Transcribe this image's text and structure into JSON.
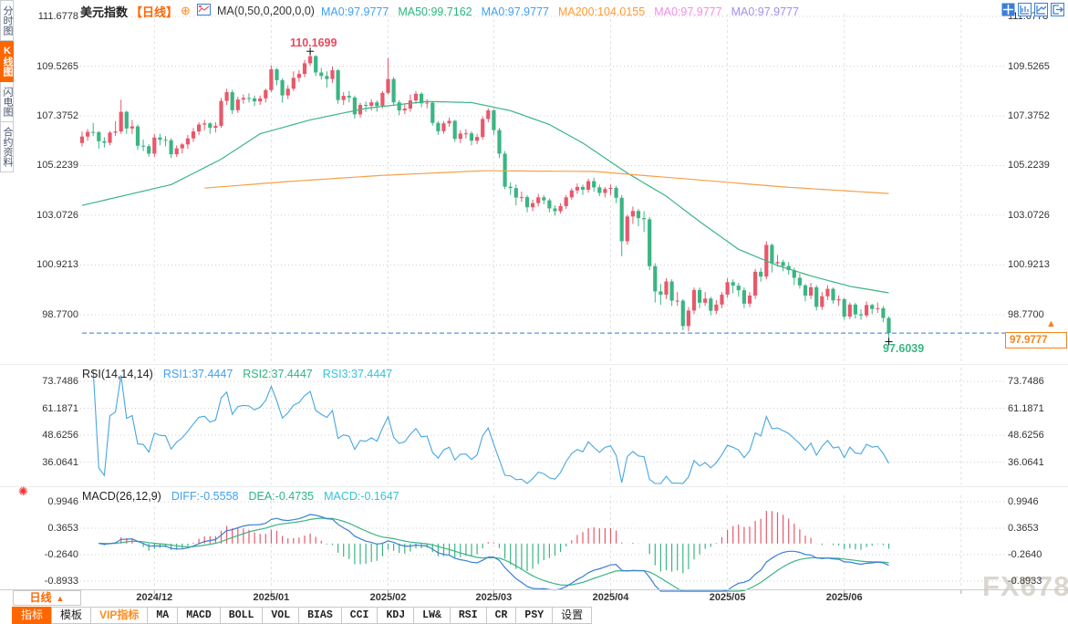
{
  "header": {
    "title": "美元指数",
    "period_tag": "【日线】",
    "plus_icon": "⊕",
    "ma_settings": "MA(0,50,0,200,0,0)",
    "ma_values": [
      {
        "label": "MA0:97.9777",
        "color": "#42a0f0"
      },
      {
        "label": "MA50:99.7162",
        "color": "#2cb580"
      },
      {
        "label": "MA0:97.9777",
        "color": "#42a0f0"
      },
      {
        "label": "MA200:104.0155",
        "color": "#ff9833"
      },
      {
        "label": "MA0:97.9777",
        "color": "#ef8fe4"
      },
      {
        "label": "MA0:97.9777",
        "color": "#a08ff0"
      }
    ]
  },
  "sidebar": {
    "items": [
      {
        "label": "分时图",
        "active": false
      },
      {
        "label": "K线图",
        "active": true
      },
      {
        "label": "闪电图",
        "active": false
      },
      {
        "label": "合约资料",
        "active": false
      }
    ]
  },
  "top_icons": [
    "crosshair-pan-icon",
    "fit-chart-icon",
    "scroll-to-latest-icon",
    "exit-icon"
  ],
  "main_axis": {
    "labels": [
      "111.6778",
      "109.5265",
      "107.3752",
      "105.2239",
      "103.0726",
      "100.9213",
      "98.7700"
    ]
  },
  "annotations": {
    "high_label": "110.1699",
    "low_label": "97.6039",
    "current_price": "97.9777"
  },
  "rsi": {
    "title": "RSI(14,14,14)",
    "values": [
      {
        "label": "RSI1:37.4447",
        "color": "#42a0f0"
      },
      {
        "label": "RSI2:37.4447",
        "color": "#2cb580"
      },
      {
        "label": "RSI3:37.4447",
        "color": "#35c3d8"
      }
    ],
    "axis": [
      "73.7486",
      "61.1871",
      "48.6256",
      "36.0641"
    ]
  },
  "macd": {
    "title": "MACD(26,12,9)",
    "values": [
      {
        "label": "DIFF:-0.5558",
        "color": "#42a0f0"
      },
      {
        "label": "DEA:-0.4735",
        "color": "#2cb580"
      },
      {
        "label": "MACD:-0.1647",
        "color": "#35c3d8"
      }
    ],
    "axis": [
      "0.9946",
      "0.3653",
      "-0.2640",
      "-0.8933"
    ]
  },
  "xaxis": {
    "period_label": "日线",
    "dates": [
      "2024/12",
      "2025/01",
      "2025/02",
      "2025/03",
      "2025/04",
      "2025/05",
      "2025/06"
    ]
  },
  "bottom_toolbar": {
    "tabs": [
      {
        "label": "指标",
        "active": true,
        "vip": false
      },
      {
        "label": "模板",
        "active": false,
        "vip": false
      },
      {
        "label": "VIP指标",
        "active": false,
        "vip": true
      }
    ],
    "indicators": [
      "MA",
      "MACD",
      "BOLL",
      "VOL",
      "BIAS",
      "CCI",
      "KDJ",
      "LW&",
      "RSI",
      "CR",
      "PSY",
      "设置"
    ]
  },
  "watermark": "FX678",
  "chart_data": {
    "type": "candlestick",
    "title": "美元指数 日线",
    "month_ticks": [
      {
        "label": "2024/12",
        "index": 13
      },
      {
        "label": "2025/01",
        "index": 34
      },
      {
        "label": "2025/02",
        "index": 55
      },
      {
        "label": "2025/03",
        "index": 74
      },
      {
        "label": "2025/04",
        "index": 95
      },
      {
        "label": "2025/05",
        "index": 116
      },
      {
        "label": "2025/06",
        "index": 137
      }
    ],
    "ylim_main": [
      97.5,
      111.6778
    ],
    "rsi_axis_values": [
      73.7486,
      61.1871,
      48.6256,
      36.0641
    ],
    "macd_axis_values": [
      0.9946,
      0.3653,
      -0.264,
      -0.8933
    ],
    "high_point": 110.1699,
    "low_point": 97.6039,
    "last_close": 97.9777,
    "candles": [
      [
        106.2,
        106.7,
        106.05,
        106.48
      ],
      [
        106.48,
        106.8,
        106.3,
        106.68
      ],
      [
        106.68,
        107.07,
        106.5,
        106.67
      ],
      [
        106.67,
        106.72,
        105.95,
        106.28
      ],
      [
        106.28,
        106.45,
        106.0,
        106.21
      ],
      [
        106.21,
        106.72,
        106.1,
        106.65
      ],
      [
        106.65,
        107.15,
        106.5,
        106.7
      ],
      [
        106.7,
        108.07,
        106.6,
        107.55
      ],
      [
        107.55,
        107.6,
        106.6,
        106.83
      ],
      [
        106.83,
        107.2,
        106.6,
        106.92
      ],
      [
        106.92,
        107.0,
        105.9,
        106.08
      ],
      [
        106.08,
        106.35,
        105.85,
        106.06
      ],
      [
        106.06,
        106.15,
        105.61,
        105.74
      ],
      [
        105.74,
        106.6,
        105.6,
        106.44
      ],
      [
        106.44,
        106.6,
        106.1,
        106.34
      ],
      [
        106.34,
        106.5,
        106.05,
        106.32
      ],
      [
        106.32,
        106.4,
        105.55,
        105.71
      ],
      [
        105.71,
        106.1,
        105.6,
        105.97
      ],
      [
        105.97,
        106.2,
        105.75,
        106.14
      ],
      [
        106.14,
        106.55,
        105.95,
        106.4
      ],
      [
        106.4,
        106.85,
        106.25,
        106.7
      ],
      [
        106.7,
        107.1,
        106.55,
        107.0
      ],
      [
        107.0,
        107.2,
        106.75,
        107.05
      ],
      [
        107.05,
        107.1,
        106.6,
        106.86
      ],
      [
        106.86,
        107.1,
        106.65,
        106.94
      ],
      [
        106.94,
        108.15,
        106.85,
        108.02
      ],
      [
        108.02,
        108.55,
        107.85,
        108.4
      ],
      [
        108.4,
        108.5,
        107.45,
        107.62
      ],
      [
        107.62,
        108.2,
        107.5,
        108.08
      ],
      [
        108.08,
        108.3,
        107.9,
        108.15
      ],
      [
        108.15,
        108.35,
        107.95,
        108.13
      ],
      [
        108.13,
        108.25,
        107.8,
        108.0
      ],
      [
        108.0,
        108.25,
        107.85,
        108.13
      ],
      [
        108.13,
        108.55,
        107.95,
        108.49
      ],
      [
        108.49,
        109.55,
        108.4,
        109.39
      ],
      [
        109.39,
        109.45,
        108.7,
        108.92
      ],
      [
        108.92,
        109.0,
        107.95,
        108.26
      ],
      [
        108.26,
        108.7,
        108.1,
        108.55
      ],
      [
        108.55,
        109.3,
        108.45,
        109.02
      ],
      [
        109.02,
        109.35,
        108.85,
        109.19
      ],
      [
        109.19,
        109.8,
        109.05,
        109.65
      ],
      [
        109.65,
        110.1699,
        109.55,
        109.96
      ],
      [
        109.96,
        110.0,
        109.1,
        109.25
      ],
      [
        109.25,
        109.45,
        108.95,
        109.1
      ],
      [
        109.1,
        109.3,
        108.6,
        108.97
      ],
      [
        108.97,
        109.5,
        108.8,
        109.35
      ],
      [
        109.35,
        109.4,
        107.9,
        108.06
      ],
      [
        108.06,
        108.4,
        107.85,
        108.24
      ],
      [
        108.24,
        108.45,
        107.95,
        108.17
      ],
      [
        108.17,
        108.25,
        107.25,
        107.44
      ],
      [
        107.44,
        107.95,
        107.3,
        107.85
      ],
      [
        107.85,
        108.0,
        107.55,
        107.81
      ],
      [
        107.81,
        108.1,
        107.6,
        107.96
      ],
      [
        107.96,
        108.05,
        107.55,
        107.8
      ],
      [
        107.8,
        108.45,
        107.7,
        108.37
      ],
      [
        108.37,
        109.88,
        108.3,
        108.97
      ],
      [
        108.97,
        109.05,
        107.8,
        107.96
      ],
      [
        107.96,
        108.05,
        107.4,
        107.61
      ],
      [
        107.61,
        107.9,
        107.45,
        107.69
      ],
      [
        107.69,
        108.3,
        107.55,
        108.04
      ],
      [
        108.04,
        108.45,
        107.9,
        108.33
      ],
      [
        108.33,
        108.4,
        107.75,
        107.92
      ],
      [
        107.92,
        108.1,
        107.7,
        107.95
      ],
      [
        107.95,
        108.0,
        106.95,
        107.07
      ],
      [
        107.07,
        107.15,
        106.55,
        106.71
      ],
      [
        106.71,
        107.15,
        106.6,
        107.05
      ],
      [
        107.05,
        107.3,
        106.9,
        107.16
      ],
      [
        107.16,
        107.2,
        106.25,
        106.38
      ],
      [
        106.38,
        106.75,
        106.2,
        106.61
      ],
      [
        106.61,
        106.8,
        106.4,
        106.62
      ],
      [
        106.62,
        106.7,
        106.1,
        106.3
      ],
      [
        106.3,
        106.6,
        106.15,
        106.46
      ],
      [
        106.46,
        107.35,
        106.35,
        107.24
      ],
      [
        107.24,
        107.7,
        107.1,
        107.61
      ],
      [
        107.61,
        107.66,
        106.55,
        106.76
      ],
      [
        106.76,
        106.85,
        105.55,
        105.74
      ],
      [
        105.74,
        105.85,
        104.2,
        104.31
      ],
      [
        104.31,
        104.5,
        103.95,
        104.25
      ],
      [
        104.25,
        104.4,
        103.5,
        103.84
      ],
      [
        103.84,
        104.1,
        103.65,
        103.86
      ],
      [
        103.86,
        103.95,
        103.2,
        103.42
      ],
      [
        103.42,
        103.75,
        103.25,
        103.6
      ],
      [
        103.6,
        104.0,
        103.45,
        103.85
      ],
      [
        103.85,
        103.95,
        103.55,
        103.72
      ],
      [
        103.72,
        103.8,
        103.2,
        103.37
      ],
      [
        103.37,
        103.5,
        103.05,
        103.25
      ],
      [
        103.25,
        103.6,
        103.15,
        103.47
      ],
      [
        103.47,
        103.95,
        103.35,
        103.85
      ],
      [
        103.85,
        104.25,
        103.75,
        104.15
      ],
      [
        104.15,
        104.45,
        104.0,
        104.3
      ],
      [
        104.3,
        104.4,
        103.95,
        104.18
      ],
      [
        104.18,
        104.65,
        104.05,
        104.55
      ],
      [
        104.55,
        104.7,
        104.1,
        104.28
      ],
      [
        104.28,
        104.4,
        103.9,
        104.04
      ],
      [
        104.04,
        104.3,
        103.85,
        104.21
      ],
      [
        104.21,
        104.4,
        103.95,
        104.26
      ],
      [
        104.26,
        104.35,
        103.6,
        103.83
      ],
      [
        103.83,
        103.95,
        101.3,
        101.95
      ],
      [
        101.95,
        103.1,
        101.8,
        103.02
      ],
      [
        103.02,
        103.45,
        102.7,
        103.26
      ],
      [
        103.26,
        103.35,
        102.6,
        102.95
      ],
      [
        102.95,
        103.25,
        102.35,
        102.9
      ],
      [
        102.9,
        103.0,
        100.7,
        100.87
      ],
      [
        100.87,
        101.0,
        99.3,
        99.78
      ],
      [
        99.78,
        100.1,
        99.2,
        99.64
      ],
      [
        99.64,
        100.35,
        99.45,
        100.21
      ],
      [
        100.21,
        100.3,
        99.15,
        99.38
      ],
      [
        99.38,
        99.75,
        99.15,
        99.38
      ],
      [
        99.38,
        99.45,
        98.1,
        98.28
      ],
      [
        98.28,
        99.1,
        98.05,
        98.95
      ],
      [
        98.95,
        99.95,
        98.8,
        99.84
      ],
      [
        99.84,
        99.95,
        99.05,
        99.29
      ],
      [
        99.29,
        99.75,
        99.15,
        99.47
      ],
      [
        99.47,
        99.55,
        98.75,
        98.94
      ],
      [
        98.94,
        99.4,
        98.8,
        99.21
      ],
      [
        99.21,
        99.75,
        99.05,
        99.64
      ],
      [
        99.64,
        100.35,
        99.5,
        100.18
      ],
      [
        100.18,
        100.3,
        99.7,
        100.03
      ],
      [
        100.03,
        100.15,
        99.55,
        99.83
      ],
      [
        99.83,
        99.95,
        99.05,
        99.25
      ],
      [
        99.25,
        99.75,
        99.1,
        99.6
      ],
      [
        99.6,
        100.75,
        99.45,
        100.63
      ],
      [
        100.63,
        100.8,
        100.2,
        100.42
      ],
      [
        100.42,
        101.95,
        100.3,
        101.79
      ],
      [
        101.79,
        101.85,
        100.6,
        100.99
      ],
      [
        100.99,
        101.35,
        100.85,
        101.05
      ],
      [
        101.05,
        101.15,
        100.65,
        100.88
      ],
      [
        100.88,
        101.05,
        100.5,
        100.7
      ],
      [
        100.7,
        100.8,
        100.05,
        100.37
      ],
      [
        100.37,
        100.55,
        99.9,
        100.04
      ],
      [
        100.04,
        100.1,
        99.35,
        99.6
      ],
      [
        99.6,
        100.15,
        99.45,
        99.96
      ],
      [
        99.96,
        100.05,
        98.95,
        99.11
      ],
      [
        99.11,
        99.75,
        98.98,
        99.57
      ],
      [
        99.57,
        100.05,
        99.4,
        99.89
      ],
      [
        99.89,
        99.95,
        99.25,
        99.39
      ],
      [
        99.39,
        99.6,
        99.15,
        99.44
      ],
      [
        99.44,
        99.5,
        98.55,
        98.69
      ],
      [
        98.69,
        99.3,
        98.58,
        99.21
      ],
      [
        99.21,
        99.28,
        98.6,
        98.79
      ],
      [
        98.79,
        99.0,
        98.55,
        98.74
      ],
      [
        98.74,
        99.35,
        98.65,
        99.19
      ],
      [
        99.19,
        99.25,
        98.8,
        99.02
      ],
      [
        99.02,
        99.3,
        98.85,
        99.05
      ],
      [
        99.05,
        99.15,
        98.45,
        98.63
      ],
      [
        98.63,
        98.7,
        97.6039,
        97.9777
      ]
    ],
    "ma50_points": [
      [
        0,
        103.5
      ],
      [
        8,
        103.95
      ],
      [
        16,
        104.4
      ],
      [
        25,
        105.5
      ],
      [
        32,
        106.6
      ],
      [
        41,
        107.2
      ],
      [
        51,
        107.7
      ],
      [
        62,
        108.0
      ],
      [
        70,
        107.95
      ],
      [
        77,
        107.6
      ],
      [
        84,
        107.0
      ],
      [
        90,
        106.2
      ],
      [
        98,
        104.9
      ],
      [
        105,
        103.9
      ],
      [
        111,
        102.8
      ],
      [
        118,
        101.6
      ],
      [
        125,
        100.9
      ],
      [
        131,
        100.45
      ],
      [
        138,
        100.0
      ],
      [
        145,
        99.7162
      ]
    ],
    "ma200_points": [
      [
        22,
        104.25
      ],
      [
        38,
        104.55
      ],
      [
        54,
        104.8
      ],
      [
        72,
        105.0
      ],
      [
        92,
        104.97
      ],
      [
        110,
        104.62
      ],
      [
        126,
        104.3
      ],
      [
        145,
        104.0155
      ]
    ],
    "colors": {
      "up": "#e8586c",
      "down": "#3bb583",
      "ma50": "#3bb583",
      "ma200": "#f5a04a",
      "rsi_line": "#47a6e0",
      "diff_line": "#3a7fd5",
      "dea_line": "#3bb583",
      "hist_pos": "#e8586c",
      "hist_neg": "#3bb583",
      "price_line": "#2e7de0",
      "grid": "#cfcfcf",
      "accent": "#ff6600"
    }
  }
}
